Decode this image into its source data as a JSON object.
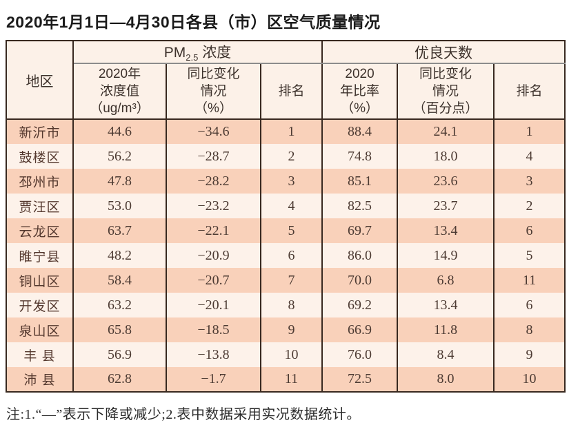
{
  "title": "2020年1月1日—4月30日各县（市）区空气质量情况",
  "table": {
    "corner": "地区",
    "group_pm": {
      "prefix": "PM",
      "sub": "2.5",
      "suffix": " 浓度"
    },
    "group_days": "优良天数",
    "subheaders": {
      "pm_value": "2020年\n浓度值\n（ug/m³）",
      "pm_change": "同比变化\n情况\n（%）",
      "pm_rank": "排名",
      "days_rate": "2020\n年比率\n（%）",
      "days_change": "同比变化\n情况\n（百分点）",
      "days_rank": "排名"
    },
    "rows": [
      {
        "region": "新沂市",
        "pm_value": "44.6",
        "pm_change": "−34.6",
        "pm_rank": "1",
        "days_rate": "88.4",
        "days_change": "24.1",
        "days_rank": "1"
      },
      {
        "region": "鼓楼区",
        "pm_value": "56.2",
        "pm_change": "−28.7",
        "pm_rank": "2",
        "days_rate": "74.8",
        "days_change": "18.0",
        "days_rank": "4"
      },
      {
        "region": "邳州市",
        "pm_value": "47.8",
        "pm_change": "−28.2",
        "pm_rank": "3",
        "days_rate": "85.1",
        "days_change": "23.6",
        "days_rank": "3"
      },
      {
        "region": "贾汪区",
        "pm_value": "53.0",
        "pm_change": "−23.2",
        "pm_rank": "4",
        "days_rate": "82.5",
        "days_change": "23.7",
        "days_rank": "2"
      },
      {
        "region": "云龙区",
        "pm_value": "63.7",
        "pm_change": "−22.1",
        "pm_rank": "5",
        "days_rate": "69.7",
        "days_change": "13.4",
        "days_rank": "6"
      },
      {
        "region": "睢宁县",
        "pm_value": "48.2",
        "pm_change": "−20.9",
        "pm_rank": "6",
        "days_rate": "86.0",
        "days_change": "14.9",
        "days_rank": "5"
      },
      {
        "region": "铜山区",
        "pm_value": "58.4",
        "pm_change": "−20.7",
        "pm_rank": "7",
        "days_rate": "70.0",
        "days_change": "6.8",
        "days_rank": "11"
      },
      {
        "region": "开发区",
        "pm_value": "63.2",
        "pm_change": "−20.1",
        "pm_rank": "8",
        "days_rate": "69.2",
        "days_change": "13.4",
        "days_rank": "6"
      },
      {
        "region": "泉山区",
        "pm_value": "65.8",
        "pm_change": "−18.5",
        "pm_rank": "9",
        "days_rate": "66.9",
        "days_change": "11.8",
        "days_rank": "8"
      },
      {
        "region": "丰 县",
        "pm_value": "56.9",
        "pm_change": "−13.8",
        "pm_rank": "10",
        "days_rate": "76.0",
        "days_change": "8.4",
        "days_rank": "9"
      },
      {
        "region": "沛 县",
        "pm_value": "62.8",
        "pm_change": "−1.7",
        "pm_rank": "11",
        "days_rate": "72.5",
        "days_change": "8.0",
        "days_rank": "10"
      }
    ]
  },
  "note": "注:1.“—”表示下降或减少;2.表中数据采用实况数据统计。",
  "colors": {
    "row_peach": "#f9d1ba",
    "row_light": "#fdf2ea",
    "header_bg": "#fcf1e8",
    "border_dark": "#38281f",
    "border_gray": "#8c8c8c",
    "text_body": "#4d3b33"
  }
}
